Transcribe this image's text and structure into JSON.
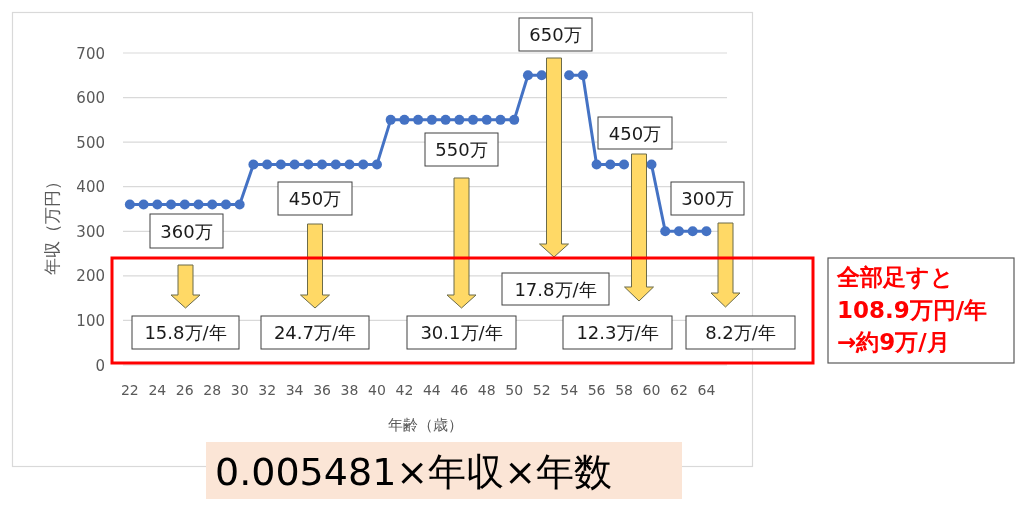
{
  "chart_data": {
    "type": "line",
    "xlabel": "年齢（歳）",
    "ylabel": "年収（万円）",
    "categories": [
      "22",
      null,
      "24",
      null,
      "26",
      null,
      "28",
      null,
      "30",
      null,
      "32",
      null,
      "34",
      null,
      "36",
      null,
      "38",
      null,
      "40",
      null,
      "42",
      null,
      "44",
      null,
      "46",
      null,
      "48",
      null,
      "50",
      null,
      "52",
      null,
      "54",
      null,
      "56",
      null,
      "58",
      null,
      "60",
      null,
      "62",
      null,
      "64",
      null
    ],
    "series": [
      {
        "color": "#4472c4",
        "values": [
          360,
          360,
          360,
          360,
          360,
          360,
          360,
          360,
          360,
          450,
          450,
          450,
          450,
          450,
          450,
          450,
          450,
          450,
          450,
          550,
          550,
          550,
          550,
          550,
          550,
          550,
          550,
          550,
          550,
          650,
          650,
          null,
          650,
          650,
          450,
          450,
          450,
          null,
          450,
          300,
          300,
          300,
          300,
          null
        ]
      }
    ],
    "ylim": [
      0,
      700
    ],
    "yticks": [
      0,
      100,
      200,
      300,
      400,
      500,
      600,
      700
    ],
    "grid": "y",
    "marker": "circle",
    "line_style": "solid",
    "annotations": [
      "360万",
      "450万",
      "550万",
      "650万",
      "450万",
      "300万",
      "15.8万/年",
      "24.7万/年",
      "30.1万/年",
      "17.8万/年",
      "12.3万/年",
      "8.2万/年",
      "全部足すと\n108.9万円/年\n→約9万/月",
      "0.005481×年収×年数"
    ]
  }
}
